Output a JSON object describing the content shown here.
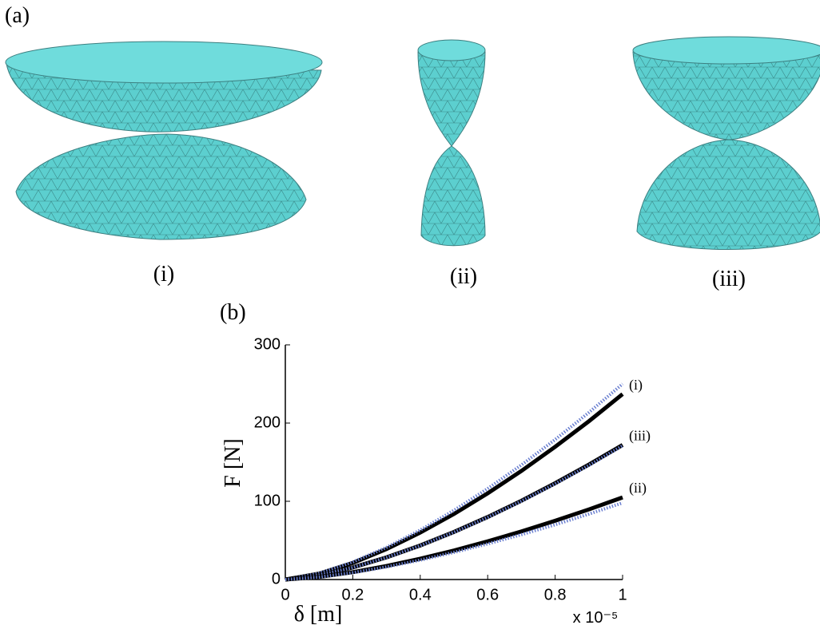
{
  "panel_a": {
    "label": "(a)",
    "shapes": [
      {
        "label": "(i)"
      },
      {
        "label": "(ii)"
      },
      {
        "label": "(iii)"
      }
    ]
  },
  "chart_data": {
    "type": "line",
    "panel_label": "(b)",
    "xlabel": "δ [m]",
    "ylabel": "F [N]",
    "x_multiplier": "x 10⁻⁵",
    "x": [
      0,
      0.1,
      0.2,
      0.3,
      0.4,
      0.5,
      0.6,
      0.7,
      0.8,
      0.9,
      1
    ],
    "series": [
      {
        "name": "(i)",
        "color": "#000000",
        "values": [
          0,
          7.5,
          21.2,
          38.9,
          60,
          83.8,
          110.2,
          138.8,
          169.6,
          202.3,
          237
        ]
      },
      {
        "color": "#6a7fd0",
        "dashed": true,
        "values": [
          0,
          7.9,
          22.4,
          41.1,
          63.2,
          88.4,
          116.2,
          146.4,
          178.9,
          213.5,
          250
        ]
      },
      {
        "name": "(iii)",
        "color": "#000000",
        "values": [
          0,
          5.4,
          15.4,
          28.3,
          43.5,
          60.8,
          79.9,
          100.7,
          123.1,
          146.9,
          172
        ]
      },
      {
        "color": "#6a7fd0",
        "dashed": true,
        "values": [
          0,
          5.4,
          15.3,
          28.1,
          43.3,
          60.5,
          79.5,
          100.2,
          122.4,
          146,
          171
        ]
      },
      {
        "name": "(ii)",
        "color": "#000000",
        "values": [
          0,
          3.3,
          9.4,
          17.3,
          26.6,
          37.1,
          48.8,
          61.5,
          75.1,
          89.6,
          105
        ]
      },
      {
        "color": "#6a7fd0",
        "dashed": true,
        "values": [
          0,
          3.1,
          8.8,
          16.1,
          24.8,
          34.7,
          45.6,
          57.4,
          70.1,
          83.7,
          98
        ]
      }
    ],
    "xlim": [
      0,
      1
    ],
    "ylim": [
      0,
      300
    ],
    "xticks": [
      0,
      0.2,
      0.4,
      0.6,
      0.8,
      1
    ],
    "yticks": [
      0,
      100,
      200,
      300
    ],
    "grid": false
  }
}
